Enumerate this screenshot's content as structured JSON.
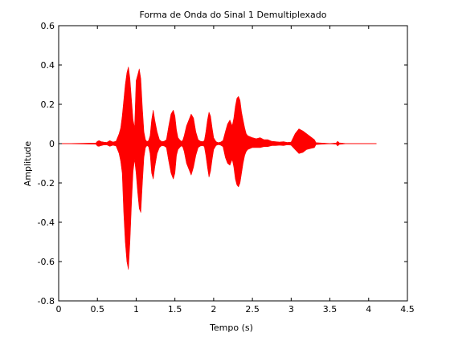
{
  "chart_data": {
    "type": "line",
    "title": "Forma de Onda do Sinal 1 Demultiplexado",
    "xlabel": "Tempo (s)",
    "ylabel": "Amplitude",
    "xlim": [
      0,
      4.5
    ],
    "ylim": [
      -0.8,
      0.6
    ],
    "xticks": [
      0,
      0.5,
      1,
      1.5,
      2,
      2.5,
      3,
      3.5,
      4,
      4.5
    ],
    "xtick_labels": [
      "0",
      "0.5",
      "1",
      "1.5",
      "2",
      "2.5",
      "3",
      "3.5",
      "4",
      "4.5"
    ],
    "yticks": [
      -0.8,
      -0.6,
      -0.4,
      -0.2,
      0,
      0.2,
      0.4,
      0.6
    ],
    "ytick_labels": [
      "-0.8",
      "-0.6",
      "-0.4",
      "-0.2",
      "0",
      "0.2",
      "0.4",
      "0.6"
    ],
    "grid": false,
    "color": "#ff0000",
    "series": [
      {
        "x": [
          0,
          0.48,
          0.5,
          0.52,
          0.55,
          0.58,
          0.62,
          0.66,
          0.7,
          0.74,
          0.78,
          0.8,
          0.82,
          0.84,
          0.86,
          0.88,
          0.9,
          0.92,
          0.94,
          0.96,
          0.98,
          1.0,
          1.02,
          1.04,
          1.06,
          1.08,
          1.1,
          1.12,
          1.14,
          1.16,
          1.18,
          1.2,
          1.22,
          1.24,
          1.27,
          1.3,
          1.33,
          1.36,
          1.39,
          1.42,
          1.45,
          1.48,
          1.5,
          1.52,
          1.54,
          1.56,
          1.58,
          1.6,
          1.62,
          1.65,
          1.68,
          1.71,
          1.74,
          1.77,
          1.8,
          1.83,
          1.86,
          1.88,
          1.9,
          1.92,
          1.94,
          1.96,
          1.98,
          2.0,
          2.03,
          2.06,
          2.09,
          2.12,
          2.15,
          2.18,
          2.21,
          2.24,
          2.26,
          2.28,
          2.3,
          2.32,
          2.34,
          2.36,
          2.38,
          2.4,
          2.42,
          2.44,
          2.47,
          2.5,
          2.55,
          2.6,
          2.65,
          2.7,
          2.75,
          2.8,
          2.85,
          2.9,
          2.95,
          3.0,
          3.05,
          3.1,
          3.15,
          3.2,
          3.25,
          3.3,
          3.32,
          3.4,
          3.5,
          3.58,
          3.6,
          3.62,
          3.7,
          3.8,
          3.9,
          4.0,
          4.1
        ],
        "y_max": [
          0,
          0.003,
          0.012,
          0.015,
          0.01,
          0.008,
          0.006,
          0.015,
          0.008,
          0.012,
          0.05,
          0.08,
          0.14,
          0.22,
          0.3,
          0.36,
          0.39,
          0.33,
          0.22,
          0.12,
          0.08,
          0.32,
          0.35,
          0.38,
          0.33,
          0.18,
          0.06,
          0.02,
          0.01,
          0.015,
          0.04,
          0.12,
          0.17,
          0.12,
          0.06,
          0.02,
          0.01,
          0.012,
          0.02,
          0.09,
          0.15,
          0.17,
          0.14,
          0.07,
          0.03,
          0.02,
          0.012,
          0.015,
          0.04,
          0.09,
          0.12,
          0.15,
          0.13,
          0.06,
          0.02,
          0.012,
          0.01,
          0.015,
          0.06,
          0.12,
          0.16,
          0.14,
          0.08,
          0.03,
          0.01,
          0.005,
          0.008,
          0.015,
          0.06,
          0.1,
          0.12,
          0.09,
          0.13,
          0.19,
          0.23,
          0.24,
          0.22,
          0.16,
          0.12,
          0.08,
          0.05,
          0.04,
          0.035,
          0.03,
          0.025,
          0.03,
          0.02,
          0.02,
          0.012,
          0.01,
          0.008,
          0.01,
          0.006,
          0.008,
          0.05,
          0.075,
          0.065,
          0.05,
          0.035,
          0.02,
          0.005,
          0.003,
          0.001,
          0.003,
          0.012,
          0.004,
          0.001,
          0.001,
          0.001,
          0.001,
          0
        ],
        "y_min": [
          0,
          -0.003,
          -0.012,
          -0.014,
          -0.01,
          -0.007,
          -0.006,
          -0.014,
          -0.008,
          -0.012,
          -0.05,
          -0.09,
          -0.15,
          -0.35,
          -0.5,
          -0.6,
          -0.64,
          -0.5,
          -0.3,
          -0.14,
          -0.08,
          -0.15,
          -0.25,
          -0.33,
          -0.35,
          -0.2,
          -0.07,
          -0.02,
          -0.01,
          -0.015,
          -0.05,
          -0.15,
          -0.18,
          -0.12,
          -0.05,
          -0.02,
          -0.01,
          -0.012,
          -0.02,
          -0.09,
          -0.15,
          -0.18,
          -0.15,
          -0.06,
          -0.03,
          -0.02,
          -0.012,
          -0.015,
          -0.04,
          -0.1,
          -0.13,
          -0.16,
          -0.12,
          -0.06,
          -0.02,
          -0.012,
          -0.01,
          -0.015,
          -0.06,
          -0.12,
          -0.17,
          -0.14,
          -0.08,
          -0.03,
          -0.01,
          -0.005,
          -0.008,
          -0.015,
          -0.07,
          -0.1,
          -0.11,
          -0.08,
          -0.12,
          -0.18,
          -0.21,
          -0.22,
          -0.2,
          -0.15,
          -0.1,
          -0.06,
          -0.04,
          -0.03,
          -0.025,
          -0.02,
          -0.02,
          -0.02,
          -0.015,
          -0.015,
          -0.01,
          -0.01,
          -0.008,
          -0.01,
          -0.006,
          -0.008,
          -0.03,
          -0.05,
          -0.045,
          -0.03,
          -0.025,
          -0.02,
          -0.005,
          -0.003,
          -0.001,
          -0.003,
          -0.012,
          -0.004,
          -0.001,
          -0.001,
          -0.001,
          -0.001,
          0
        ]
      }
    ]
  }
}
